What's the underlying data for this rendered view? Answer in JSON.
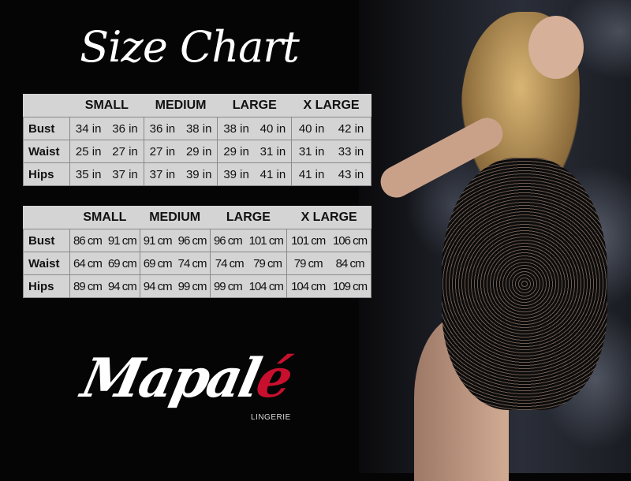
{
  "title": "Size Chart",
  "sizes": [
    "SMALL",
    "MEDIUM",
    "LARGE",
    "X LARGE"
  ],
  "inches": {
    "rows": [
      {
        "label": "Bust",
        "values": [
          [
            "34 in",
            "36 in"
          ],
          [
            "36 in",
            "38 in"
          ],
          [
            "38 in",
            "40 in"
          ],
          [
            "40 in",
            "42 in"
          ]
        ]
      },
      {
        "label": "Waist",
        "values": [
          [
            "25 in",
            "27 in"
          ],
          [
            "27 in",
            "29 in"
          ],
          [
            "29 in",
            "31 in"
          ],
          [
            "31 in",
            "33 in"
          ]
        ]
      },
      {
        "label": "Hips",
        "values": [
          [
            "35 in",
            "37 in"
          ],
          [
            "37 in",
            "39 in"
          ],
          [
            "39 in",
            "41 in"
          ],
          [
            "41 in",
            "43 in"
          ]
        ]
      }
    ]
  },
  "centimeters": {
    "rows": [
      {
        "label": "Bust",
        "values": [
          [
            "86 cm",
            "91 cm"
          ],
          [
            "91 cm",
            "96 cm"
          ],
          [
            "96 cm",
            "101 cm"
          ],
          [
            "101 cm",
            "106 cm"
          ]
        ]
      },
      {
        "label": "Waist",
        "values": [
          [
            "64 cm",
            "69 cm"
          ],
          [
            "69 cm",
            "74 cm"
          ],
          [
            "74 cm",
            "79 cm"
          ],
          [
            "79 cm",
            "84 cm"
          ]
        ]
      },
      {
        "label": "Hips",
        "values": [
          [
            "89 cm",
            "94 cm"
          ],
          [
            "94 cm",
            "99 cm"
          ],
          [
            "99 cm",
            "104 cm"
          ],
          [
            "104 cm",
            "109 cm"
          ]
        ]
      }
    ]
  },
  "brand": {
    "name_main": "Mapal",
    "name_accent": "é",
    "subtitle": "LINGERIE",
    "accent_color": "#c8102e"
  }
}
